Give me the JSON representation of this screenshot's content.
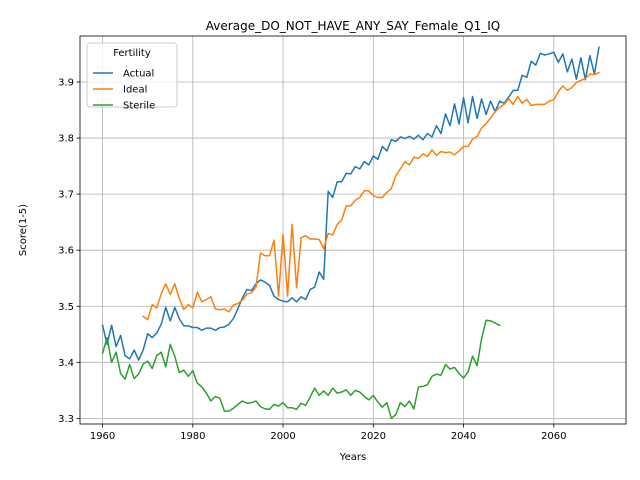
{
  "chart_data": {
    "type": "line",
    "title": "Average_DO_NOT_HAVE_ANY_SAY_Female_Q1_IQ",
    "xlabel": "Years",
    "ylabel": "Score(1-5)",
    "xlim": [
      1955,
      2076
    ],
    "ylim": [
      3.29,
      3.982
    ],
    "xticks": [
      1960,
      1980,
      2000,
      2020,
      2040,
      2060
    ],
    "yticks": [
      3.3,
      3.4,
      3.5,
      3.6,
      3.7,
      3.8,
      3.9
    ],
    "grid": true,
    "legend": {
      "title": "Fertility",
      "position": "top-left"
    },
    "series": [
      {
        "name": "Actual",
        "color": "#1f77b4",
        "x": [
          1960,
          1961,
          1962,
          1963,
          1964,
          1965,
          1966,
          1967,
          1968,
          1969,
          1970,
          1971,
          1972,
          1973,
          1974,
          1975,
          1976,
          1977,
          1978,
          1979,
          1980,
          1981,
          1982,
          1983,
          1984,
          1985,
          1986,
          1987,
          1988,
          1989,
          1990,
          1991,
          1992,
          1993,
          1994,
          1995,
          1996,
          1997,
          1998,
          1999,
          2000,
          2001,
          2002,
          2003,
          2004,
          2005,
          2006,
          2007,
          2008,
          2009,
          2010,
          2011,
          2012,
          2013,
          2014,
          2015,
          2016,
          2017,
          2018,
          2019,
          2020,
          2021,
          2022,
          2023,
          2024,
          2025,
          2026,
          2027,
          2028,
          2029,
          2030,
          2031,
          2032,
          2033,
          2034,
          2035,
          2036,
          2037,
          2038,
          2039,
          2040,
          2041,
          2042,
          2043,
          2044,
          2045,
          2046,
          2047,
          2048,
          2049,
          2050,
          2051,
          2052,
          2053,
          2054,
          2055,
          2056,
          2057,
          2058,
          2059,
          2060,
          2061,
          2062,
          2063,
          2064,
          2065,
          2066,
          2067,
          2068,
          2069,
          2070
        ],
        "values": [
          3.466,
          3.432,
          3.466,
          3.428,
          3.448,
          3.412,
          3.406,
          3.422,
          3.404,
          3.422,
          3.451,
          3.444,
          3.452,
          3.468,
          3.498,
          3.474,
          3.498,
          3.478,
          3.465,
          3.465,
          3.462,
          3.462,
          3.457,
          3.461,
          3.461,
          3.457,
          3.462,
          3.463,
          3.468,
          3.478,
          3.496,
          3.515,
          3.53,
          3.528,
          3.54,
          3.547,
          3.543,
          3.537,
          3.518,
          3.512,
          3.509,
          3.508,
          3.515,
          3.508,
          3.517,
          3.512,
          3.53,
          3.534,
          3.561,
          3.548,
          3.705,
          3.694,
          3.722,
          3.722,
          3.737,
          3.736,
          3.749,
          3.745,
          3.758,
          3.752,
          3.768,
          3.762,
          3.785,
          3.777,
          3.797,
          3.794,
          3.802,
          3.799,
          3.803,
          3.798,
          3.805,
          3.797,
          3.808,
          3.802,
          3.822,
          3.808,
          3.843,
          3.822,
          3.861,
          3.825,
          3.872,
          3.827,
          3.874,
          3.835,
          3.87,
          3.842,
          3.866,
          3.847,
          3.866,
          3.862,
          3.873,
          3.885,
          3.885,
          3.912,
          3.908,
          3.937,
          3.93,
          3.951,
          3.948,
          3.95,
          3.953,
          3.935,
          3.95,
          3.918,
          3.941,
          3.905,
          3.943,
          3.904,
          3.947,
          3.914,
          3.962
        ]
      },
      {
        "name": "Ideal",
        "color": "#ff7f0e",
        "x": [
          1969,
          1970,
          1971,
          1972,
          1973,
          1974,
          1975,
          1976,
          1977,
          1978,
          1979,
          1980,
          1981,
          1982,
          1983,
          1984,
          1985,
          1986,
          1987,
          1988,
          1989,
          1990,
          1991,
          1992,
          1993,
          1994,
          1995,
          1996,
          1997,
          1998,
          1999,
          2000,
          2001,
          2002,
          2003,
          2004,
          2005,
          2006,
          2007,
          2008,
          2009,
          2010,
          2011,
          2012,
          2013,
          2014,
          2015,
          2016,
          2017,
          2018,
          2019,
          2020,
          2021,
          2022,
          2023,
          2024,
          2025,
          2026,
          2027,
          2028,
          2029,
          2030,
          2031,
          2032,
          2033,
          2034,
          2035,
          2036,
          2037,
          2038,
          2039,
          2040,
          2041,
          2042,
          2043,
          2044,
          2045,
          2046,
          2047,
          2048,
          2049,
          2050,
          2051,
          2052,
          2053,
          2054,
          2055,
          2056,
          2057,
          2058,
          2059,
          2060,
          2061,
          2062,
          2063,
          2064,
          2065,
          2066,
          2067,
          2068,
          2069,
          2070
        ],
        "values": [
          3.482,
          3.476,
          3.503,
          3.497,
          3.522,
          3.54,
          3.521,
          3.54,
          3.514,
          3.494,
          3.503,
          3.497,
          3.525,
          3.508,
          3.512,
          3.517,
          3.495,
          3.494,
          3.495,
          3.49,
          3.502,
          3.505,
          3.511,
          3.522,
          3.524,
          3.534,
          3.595,
          3.59,
          3.59,
          3.618,
          3.518,
          3.628,
          3.518,
          3.646,
          3.533,
          3.622,
          3.626,
          3.62,
          3.62,
          3.619,
          3.603,
          3.63,
          3.627,
          3.646,
          3.654,
          3.679,
          3.679,
          3.689,
          3.694,
          3.706,
          3.706,
          3.697,
          3.694,
          3.694,
          3.703,
          3.71,
          3.733,
          3.745,
          3.758,
          3.752,
          3.766,
          3.764,
          3.772,
          3.767,
          3.779,
          3.769,
          3.776,
          3.774,
          3.775,
          3.77,
          3.777,
          3.785,
          3.785,
          3.798,
          3.803,
          3.818,
          3.826,
          3.836,
          3.847,
          3.855,
          3.86,
          3.87,
          3.86,
          3.874,
          3.862,
          3.869,
          3.858,
          3.86,
          3.86,
          3.86,
          3.866,
          3.868,
          3.883,
          3.893,
          3.885,
          3.89,
          3.899,
          3.903,
          3.906,
          3.914,
          3.913,
          3.917
        ]
      },
      {
        "name": "Sterile",
        "color": "#2ca02c",
        "x": [
          1960,
          1961,
          1962,
          1963,
          1964,
          1965,
          1966,
          1967,
          1968,
          1969,
          1970,
          1971,
          1972,
          1973,
          1974,
          1975,
          1976,
          1977,
          1978,
          1979,
          1980,
          1981,
          1982,
          1983,
          1984,
          1985,
          1986,
          1987,
          1988,
          1989,
          1990,
          1991,
          1992,
          1993,
          1994,
          1995,
          1996,
          1997,
          1998,
          1999,
          2000,
          2001,
          2002,
          2003,
          2004,
          2005,
          2006,
          2007,
          2008,
          2009,
          2010,
          2011,
          2012,
          2013,
          2014,
          2015,
          2016,
          2017,
          2018,
          2019,
          2020,
          2021,
          2022,
          2023,
          2024,
          2025,
          2026,
          2027,
          2028,
          2029,
          2030,
          2031,
          2032,
          2033,
          2034,
          2035,
          2036,
          2037,
          2038,
          2039,
          2040,
          2041,
          2042,
          2043,
          2044,
          2045,
          2046,
          2047,
          2048
        ],
        "values": [
          3.416,
          3.444,
          3.4,
          3.418,
          3.38,
          3.37,
          3.396,
          3.371,
          3.379,
          3.397,
          3.402,
          3.389,
          3.412,
          3.418,
          3.392,
          3.432,
          3.411,
          3.382,
          3.386,
          3.375,
          3.385,
          3.363,
          3.356,
          3.345,
          3.331,
          3.339,
          3.336,
          3.313,
          3.313,
          3.318,
          3.325,
          3.331,
          3.327,
          3.328,
          3.331,
          3.321,
          3.317,
          3.316,
          3.325,
          3.322,
          3.328,
          3.319,
          3.319,
          3.316,
          3.327,
          3.323,
          3.338,
          3.354,
          3.341,
          3.349,
          3.341,
          3.354,
          3.345,
          3.347,
          3.351,
          3.341,
          3.35,
          3.347,
          3.339,
          3.333,
          3.341,
          3.329,
          3.32,
          3.328,
          3.3,
          3.307,
          3.328,
          3.321,
          3.331,
          3.317,
          3.356,
          3.357,
          3.36,
          3.375,
          3.379,
          3.377,
          3.396,
          3.388,
          3.391,
          3.38,
          3.372,
          3.383,
          3.411,
          3.394,
          3.442,
          3.475,
          3.474,
          3.47,
          3.466
        ]
      }
    ]
  }
}
